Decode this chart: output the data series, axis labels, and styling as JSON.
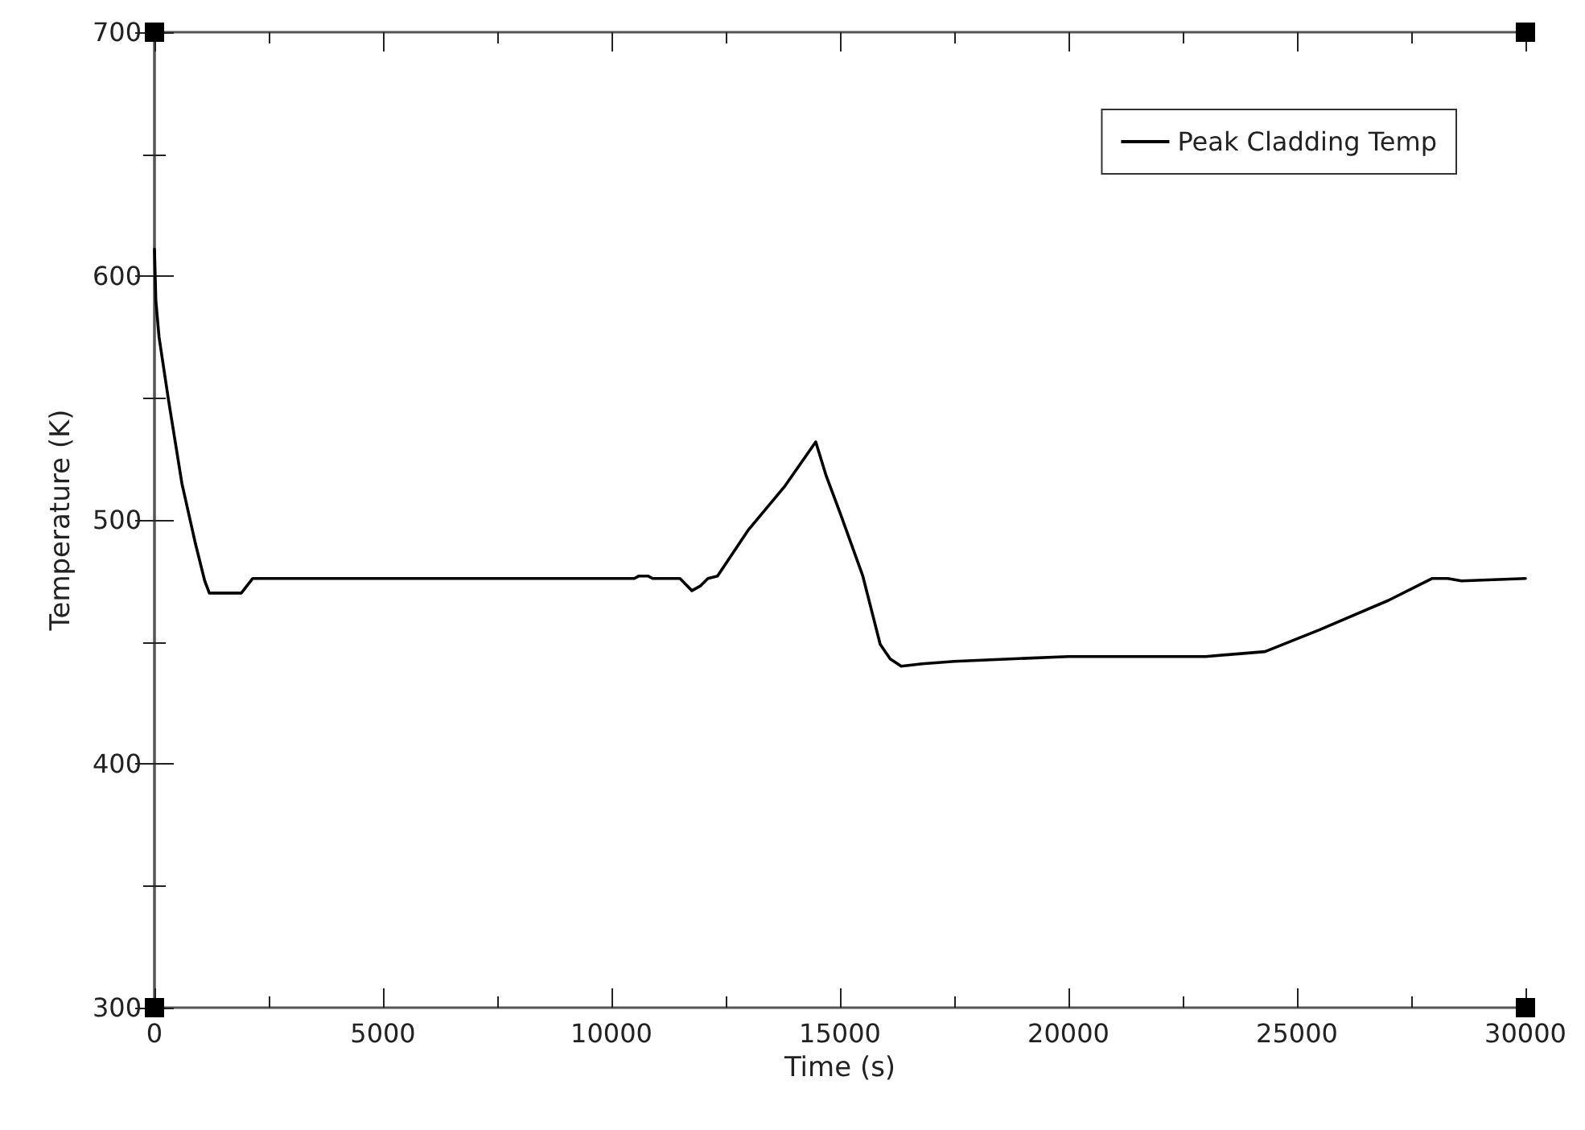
{
  "chart_data": {
    "type": "line",
    "xlabel": "Time (s)",
    "ylabel": "Temperature (K)",
    "xlim": [
      0,
      30000
    ],
    "xticks": [
      0,
      5000,
      10000,
      15000,
      20000,
      25000,
      30000
    ],
    "ylim": [
      300,
      700
    ],
    "yticks": [
      300,
      400,
      500,
      600,
      700
    ],
    "grid": false,
    "legend": "top right",
    "marker": "none",
    "line_style": "solid",
    "series": [
      {
        "name": "Peak Cladding Temp",
        "color": "#000000",
        "x": [
          0,
          30,
          100,
          300,
          600,
          900,
          1100,
          1200,
          1900,
          2150,
          10500,
          10600,
          10800,
          10900,
          11500,
          11760,
          11950,
          12110,
          12320,
          13000,
          13800,
          14470,
          14700,
          15000,
          15500,
          15880,
          16100,
          16340,
          16800,
          17500,
          20000,
          23000,
          24300,
          25500,
          27000,
          27960,
          28300,
          28600,
          30000
        ],
        "values": [
          611,
          590,
          575,
          550,
          515,
          490,
          475,
          470,
          470,
          476,
          476,
          477,
          477,
          476,
          476,
          471,
          473,
          476,
          477,
          496,
          514,
          532,
          518,
          503,
          477,
          449,
          443,
          440,
          441,
          442,
          444,
          444,
          446,
          455,
          467,
          476,
          476,
          475,
          476
        ]
      }
    ]
  }
}
